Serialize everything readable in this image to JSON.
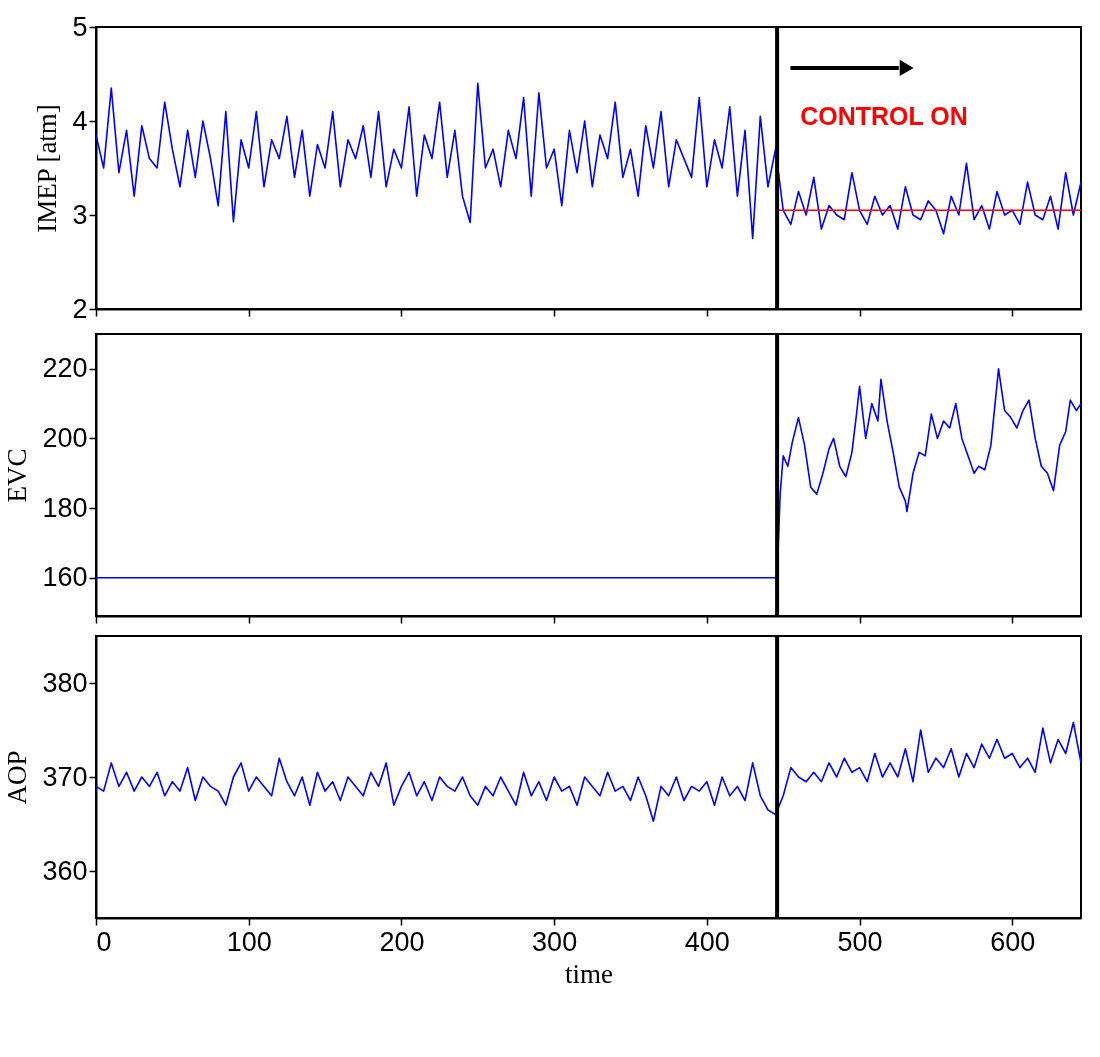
{
  "chart_data": [
    {
      "type": "line",
      "ylabel": "IMEP [atm]",
      "xlim": [
        0,
        645
      ],
      "ylim": [
        2,
        5
      ],
      "xticks": [
        0,
        100,
        200,
        300,
        400,
        500,
        600
      ],
      "yticks": [
        2,
        3,
        4,
        5
      ],
      "tick_labels": "y",
      "x": [
        0,
        5,
        10,
        15,
        20,
        25,
        30,
        35,
        40,
        45,
        50,
        55,
        60,
        65,
        70,
        75,
        80,
        85,
        90,
        95,
        100,
        105,
        110,
        115,
        120,
        125,
        130,
        135,
        140,
        145,
        150,
        155,
        160,
        165,
        170,
        175,
        180,
        185,
        190,
        195,
        200,
        205,
        210,
        215,
        220,
        225,
        230,
        235,
        240,
        245,
        250,
        255,
        260,
        265,
        270,
        275,
        280,
        285,
        290,
        295,
        300,
        305,
        310,
        315,
        320,
        325,
        330,
        335,
        340,
        345,
        350,
        355,
        360,
        365,
        370,
        375,
        380,
        385,
        390,
        395,
        400,
        405,
        410,
        415,
        420,
        425,
        430,
        435,
        440,
        445,
        450,
        455,
        460,
        465,
        470,
        475,
        480,
        485,
        490,
        495,
        500,
        505,
        510,
        515,
        520,
        525,
        530,
        535,
        540,
        545,
        550,
        555,
        560,
        565,
        570,
        575,
        580,
        585,
        590,
        595,
        600,
        605,
        610,
        615,
        620,
        625,
        630,
        635,
        640,
        645
      ],
      "series": [
        {
          "color": "#0000ff",
          "values": [
            3.85,
            3.5,
            4.35,
            3.45,
            3.9,
            3.2,
            3.95,
            3.6,
            3.5,
            4.2,
            3.7,
            3.3,
            3.9,
            3.4,
            4.0,
            3.6,
            3.1,
            4.1,
            2.93,
            3.8,
            3.5,
            4.1,
            3.3,
            3.8,
            3.6,
            4.05,
            3.4,
            3.9,
            3.2,
            3.75,
            3.5,
            4.1,
            3.3,
            3.8,
            3.6,
            3.95,
            3.4,
            4.1,
            3.3,
            3.7,
            3.5,
            4.15,
            3.2,
            3.85,
            3.6,
            4.2,
            3.4,
            3.9,
            3.2,
            2.92,
            4.4,
            3.5,
            3.7,
            3.3,
            3.9,
            3.6,
            4.25,
            3.2,
            4.3,
            3.5,
            3.7,
            3.1,
            3.9,
            3.45,
            4.0,
            3.3,
            3.85,
            3.6,
            4.2,
            3.4,
            3.7,
            3.2,
            3.95,
            3.5,
            4.1,
            3.3,
            3.8,
            3.6,
            3.4,
            4.25,
            3.3,
            3.8,
            3.5,
            4.15,
            3.2,
            3.9,
            2.75,
            4.05,
            3.3,
            3.7,
            3.05,
            2.9,
            3.25,
            3.0,
            3.4,
            2.85,
            3.1,
            3.0,
            2.95,
            3.45,
            3.05,
            2.9,
            3.2,
            3.0,
            3.1,
            2.85,
            3.3,
            3.0,
            2.95,
            3.15,
            3.05,
            2.8,
            3.2,
            3.0,
            3.55,
            2.95,
            3.1,
            2.85,
            3.25,
            3.0,
            3.05,
            2.9,
            3.35,
            3.0,
            2.95,
            3.2,
            2.85,
            3.45,
            3.0,
            3.35
          ]
        },
        {
          "type": "line",
          "color": "#ff0000",
          "x": [
            446,
            645
          ],
          "values": [
            3.05,
            3.05
          ]
        }
      ],
      "ref_lines": [
        {
          "axis": "x",
          "value": 446,
          "color": "#000000"
        }
      ],
      "annotations": [
        "CONTROL ON"
      ]
    },
    {
      "type": "line",
      "ylabel": "EVC",
      "xlim": [
        0,
        645
      ],
      "ylim": [
        149,
        230
      ],
      "xticks": [
        0,
        100,
        200,
        300,
        400,
        500,
        600
      ],
      "yticks": [
        160,
        180,
        200,
        220
      ],
      "tick_labels": "y",
      "x": [
        0,
        446,
        448,
        450,
        453,
        456,
        460,
        464,
        468,
        472,
        476,
        480,
        483,
        487,
        491,
        495,
        498,
        500,
        504,
        508,
        512,
        514,
        518,
        522,
        526,
        530,
        531,
        535,
        539,
        543,
        547,
        551,
        555,
        559,
        563,
        567,
        571,
        575,
        578,
        582,
        586,
        591,
        595,
        599,
        603,
        607,
        611,
        615,
        619,
        623,
        627,
        631,
        635,
        638,
        642,
        645
      ],
      "series": [
        {
          "color": "#0000ff",
          "values": [
            160,
            160,
            184,
            195,
            192,
            199,
            206,
            198,
            186,
            184,
            190,
            197,
            200,
            192,
            189,
            196,
            207,
            215,
            200,
            210,
            205,
            217,
            205,
            196,
            186,
            182,
            179,
            190,
            196,
            195,
            207,
            200,
            205,
            203,
            210,
            200,
            195,
            190,
            192,
            191,
            198,
            220,
            208,
            206,
            203,
            208,
            211,
            200,
            192,
            190,
            185,
            198,
            202,
            211,
            208,
            210
          ]
        }
      ],
      "ref_lines": [
        {
          "axis": "x",
          "value": 446,
          "color": "#000000"
        }
      ]
    },
    {
      "type": "line",
      "ylabel": "AOP",
      "xlabel": "time",
      "xlim": [
        0,
        645
      ],
      "ylim": [
        355,
        385
      ],
      "xticks": [
        0,
        100,
        200,
        300,
        400,
        500,
        600
      ],
      "yticks": [
        360,
        370,
        380
      ],
      "x": [
        0,
        5,
        10,
        15,
        20,
        25,
        30,
        35,
        40,
        45,
        50,
        55,
        60,
        65,
        70,
        75,
        80,
        85,
        90,
        95,
        100,
        105,
        110,
        115,
        120,
        125,
        130,
        135,
        140,
        145,
        150,
        155,
        160,
        165,
        170,
        175,
        180,
        185,
        190,
        195,
        200,
        205,
        210,
        215,
        220,
        225,
        230,
        235,
        240,
        245,
        250,
        255,
        260,
        265,
        270,
        275,
        280,
        285,
        290,
        295,
        300,
        305,
        310,
        315,
        320,
        325,
        330,
        335,
        340,
        345,
        350,
        355,
        360,
        365,
        370,
        375,
        380,
        385,
        390,
        395,
        400,
        405,
        410,
        415,
        420,
        425,
        430,
        435,
        440,
        445,
        450,
        455,
        460,
        465,
        470,
        475,
        480,
        485,
        490,
        495,
        500,
        505,
        510,
        515,
        520,
        525,
        530,
        535,
        540,
        545,
        550,
        555,
        560,
        565,
        570,
        575,
        580,
        585,
        590,
        595,
        600,
        605,
        610,
        615,
        620,
        625,
        630,
        635,
        640,
        645
      ],
      "series": [
        {
          "color": "#0000ff",
          "values": [
            369,
            368.5,
            371.5,
            369,
            370.5,
            368.5,
            370,
            369,
            370.5,
            368,
            369.5,
            368.5,
            371,
            367.5,
            370,
            369,
            368.5,
            367,
            370,
            371.5,
            368.5,
            370,
            369,
            368,
            372,
            369.5,
            368,
            370,
            367,
            370.5,
            368.5,
            369.5,
            367.5,
            370,
            369,
            368,
            370.5,
            369,
            371.5,
            367,
            369,
            370.5,
            368,
            369.5,
            367.5,
            370,
            369,
            368.5,
            370,
            368,
            367,
            369,
            368,
            370,
            368.5,
            367,
            370.5,
            368,
            369.5,
            367.5,
            370,
            368.5,
            369,
            367,
            370,
            369,
            368,
            370.5,
            368.5,
            369,
            367.5,
            370,
            368,
            365.3,
            369,
            368,
            370,
            367.5,
            369,
            368.5,
            369.5,
            367,
            370,
            368,
            369,
            367.5,
            371.5,
            368,
            366.5,
            366,
            368,
            371,
            370,
            369.5,
            370.5,
            369.5,
            371.5,
            370,
            372,
            370.5,
            371,
            369.5,
            372.5,
            370,
            371.5,
            370,
            373,
            369.5,
            375,
            370.5,
            372,
            371,
            373,
            370,
            372.5,
            371,
            373.5,
            372,
            374,
            372,
            372.5,
            371,
            372,
            370.5,
            375.2,
            371.5,
            374,
            372.5,
            375.8,
            371.5
          ]
        }
      ],
      "ref_lines": [
        {
          "axis": "x",
          "value": 446,
          "color": "#000000"
        }
      ]
    }
  ]
}
